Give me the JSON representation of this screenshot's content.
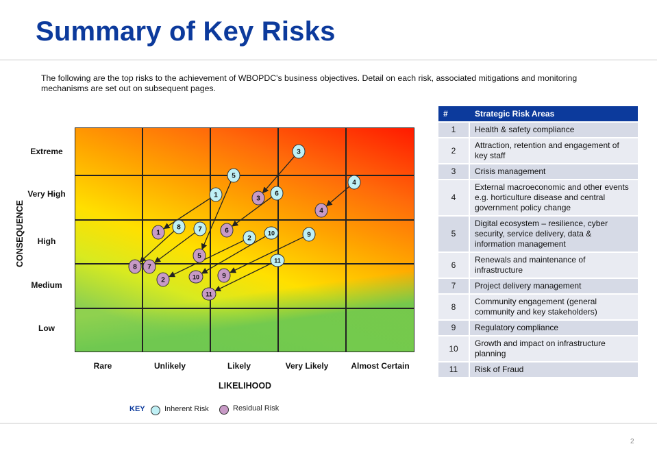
{
  "title": "Summary of Key Risks",
  "intro": "The following are the top risks to the achievement of WBOPDC's business objectives. Detail on each risk, associated mitigations and monitoring mechanisms are set out on subsequent pages.",
  "page_number": "2",
  "matrix": {
    "y_axis_title": "CONSEQUENCE",
    "x_axis_title": "LIKELIHOOD",
    "consequence_levels": [
      "Extreme",
      "Very High",
      "High",
      "Medium",
      "Low"
    ],
    "likelihood_levels": [
      "Rare",
      "Unlikely",
      "Likely",
      "Very Likely",
      "Almost Certain"
    ],
    "colors": {
      "inherent": "#bff0f5",
      "residual": "#c89ac6",
      "line": "#222222"
    },
    "risks": [
      {
        "id": "1",
        "inherent": [
          "Likely",
          "Very High"
        ],
        "residual": [
          "Unlikely",
          "High"
        ]
      },
      {
        "id": "2",
        "inherent": [
          "Likely",
          "High"
        ],
        "residual": [
          "Unlikely",
          "Medium"
        ]
      },
      {
        "id": "3",
        "inherent": [
          "Very Likely",
          "Extreme"
        ],
        "residual": [
          "Likely",
          "Very High"
        ]
      },
      {
        "id": "4",
        "inherent": [
          "Almost Certain",
          "Very High"
        ],
        "residual": [
          "Very Likely",
          "Very High"
        ]
      },
      {
        "id": "5",
        "inherent": [
          "Likely",
          "Very High"
        ],
        "residual": [
          "Likely",
          "High"
        ]
      },
      {
        "id": "6",
        "inherent": [
          "Very Likely",
          "Very High"
        ],
        "residual": [
          "Likely",
          "High"
        ]
      },
      {
        "id": "7",
        "inherent": [
          "Unlikely",
          "High"
        ],
        "residual": [
          "Unlikely",
          "Medium"
        ]
      },
      {
        "id": "8",
        "inherent": [
          "Unlikely",
          "High"
        ],
        "residual": [
          "Rare",
          "Medium"
        ]
      },
      {
        "id": "9",
        "inherent": [
          "Very Likely",
          "High"
        ],
        "residual": [
          "Likely",
          "Medium"
        ]
      },
      {
        "id": "10",
        "inherent": [
          "Very Likely",
          "High"
        ],
        "residual": [
          "Likely",
          "Medium"
        ]
      },
      {
        "id": "11",
        "inherent": [
          "Very Likely",
          "Medium"
        ],
        "residual": [
          "Likely",
          "Medium"
        ]
      }
    ]
  },
  "key": {
    "title": "KEY",
    "inherent_label": "Inherent Risk",
    "residual_label": "Residual Risk"
  },
  "table": {
    "header_num": "#",
    "header_area": "Strategic Risk Areas",
    "rows": [
      {
        "num": "1",
        "area": "Health & safety compliance"
      },
      {
        "num": "2",
        "area": "Attraction, retention and engagement of key staff"
      },
      {
        "num": "3",
        "area": "Crisis management"
      },
      {
        "num": "4",
        "area": "External macroeconomic and other events e.g. horticulture disease and central government policy change"
      },
      {
        "num": "5",
        "area": "Digital ecosystem – resilience, cyber security, service delivery, data & information management"
      },
      {
        "num": "6",
        "area": "Renewals and maintenance of infrastructure"
      },
      {
        "num": "7",
        "area": "Project delivery management"
      },
      {
        "num": "8",
        "area": "Community engagement (general community and key stakeholders)"
      },
      {
        "num": "9",
        "area": "Regulatory compliance"
      },
      {
        "num": "10",
        "area": "Growth and impact on infrastructure planning"
      },
      {
        "num": "11",
        "area": "Risk of Fraud"
      }
    ]
  }
}
